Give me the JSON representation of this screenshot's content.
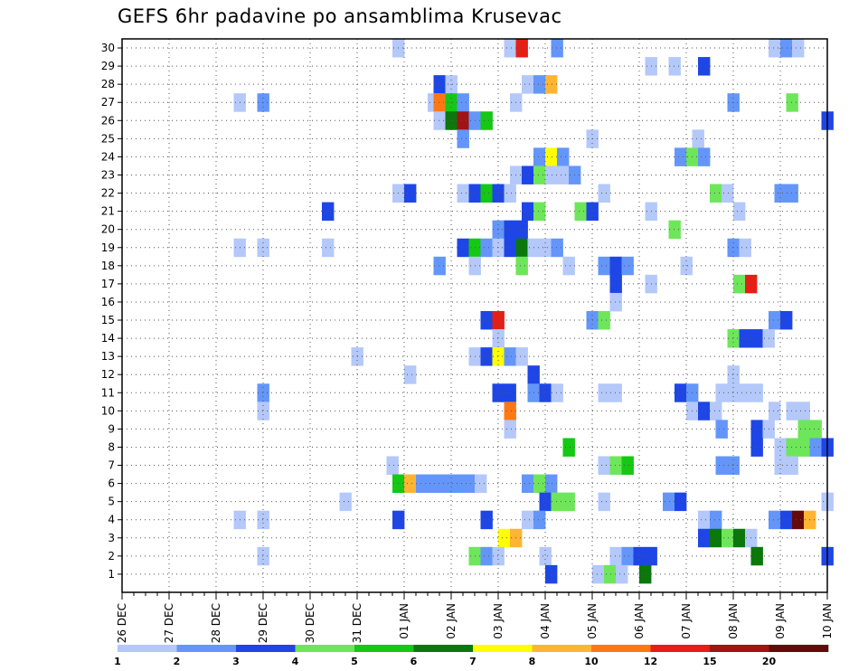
{
  "chart_data": {
    "type": "heatmap",
    "title": "GEFS 6hr padavine po ansamblima Krusevac",
    "x_tick_labels": [
      "26 DEC",
      "27 DEC",
      "28 DEC",
      "29 DEC",
      "30 DEC",
      "31 DEC",
      "01 JAN",
      "02 JAN",
      "03 JAN",
      "04 JAN",
      "05 JAN",
      "06 JAN",
      "07 JAN",
      "08 JAN",
      "09 JAN",
      "10 JAN"
    ],
    "y_tick_labels": [
      "1",
      "2",
      "3",
      "4",
      "5",
      "6",
      "7",
      "8",
      "9",
      "10",
      "11",
      "12",
      "13",
      "14",
      "15",
      "16",
      "17",
      "18",
      "19",
      "20",
      "21",
      "22",
      "23",
      "24",
      "25",
      "26",
      "27",
      "28",
      "29",
      "30"
    ],
    "x_range_steps": [
      0,
      60
    ],
    "y_range_members": [
      0,
      30
    ],
    "grid": true,
    "legend_position": "bottom",
    "levels": [
      "1",
      "2",
      "3",
      "4",
      "5",
      "6",
      "7",
      "8",
      "10",
      "12",
      "15",
      "20"
    ],
    "level_colors": [
      "#b4c8fa",
      "#6496fa",
      "#1e46e6",
      "#6ee65a",
      "#14c814",
      "#0a780a",
      "#ffff00",
      "#ffb432",
      "#ff7814",
      "#e61e14",
      "#a01414",
      "#640a0a"
    ],
    "cells": [
      [
        30,
        23.5,
        0
      ],
      [
        30,
        33,
        0
      ],
      [
        30,
        34,
        9
      ],
      [
        30,
        37,
        1
      ],
      [
        30,
        55.5,
        0
      ],
      [
        30,
        56.5,
        1
      ],
      [
        30,
        57.5,
        0
      ],
      [
        29,
        45,
        0
      ],
      [
        29,
        47,
        0
      ],
      [
        29,
        49.5,
        2
      ],
      [
        28,
        27,
        2
      ],
      [
        28,
        28,
        0
      ],
      [
        28,
        34.5,
        0
      ],
      [
        28,
        35.5,
        1
      ],
      [
        28,
        36.5,
        7
      ],
      [
        27,
        10,
        0
      ],
      [
        27,
        12,
        1
      ],
      [
        27,
        26.5,
        0
      ],
      [
        27,
        27,
        8
      ],
      [
        27,
        28,
        4
      ],
      [
        27,
        29,
        1
      ],
      [
        27,
        33.5,
        0
      ],
      [
        27,
        52,
        1
      ],
      [
        27,
        57,
        3
      ],
      [
        26,
        27,
        0
      ],
      [
        26,
        28,
        5
      ],
      [
        26,
        29,
        10
      ],
      [
        26,
        30,
        1
      ],
      [
        26,
        31,
        4
      ],
      [
        26,
        60,
        2
      ],
      [
        25,
        29,
        1
      ],
      [
        25,
        40,
        0
      ],
      [
        25,
        49,
        0
      ],
      [
        24,
        35.5,
        1
      ],
      [
        24,
        36.5,
        6
      ],
      [
        24,
        37.5,
        1
      ],
      [
        24,
        47.5,
        1
      ],
      [
        24,
        48.5,
        3
      ],
      [
        24,
        49.5,
        1
      ],
      [
        23,
        33.5,
        0
      ],
      [
        23,
        34.5,
        2
      ],
      [
        23,
        35.5,
        3
      ],
      [
        23,
        36.5,
        0
      ],
      [
        23,
        37.5,
        0
      ],
      [
        23,
        38.5,
        1
      ],
      [
        22,
        23.5,
        0
      ],
      [
        22,
        24.5,
        2
      ],
      [
        22,
        29,
        0
      ],
      [
        22,
        30,
        2
      ],
      [
        22,
        31,
        4
      ],
      [
        22,
        32,
        2
      ],
      [
        22,
        33,
        0
      ],
      [
        22,
        41,
        0
      ],
      [
        22,
        50.5,
        3
      ],
      [
        22,
        51.5,
        0
      ],
      [
        22,
        56,
        1
      ],
      [
        22,
        57,
        1
      ],
      [
        21,
        17.5,
        2
      ],
      [
        21,
        34.5,
        2
      ],
      [
        21,
        35.5,
        3
      ],
      [
        21,
        39,
        3
      ],
      [
        21,
        40,
        2
      ],
      [
        21,
        45,
        0
      ],
      [
        21,
        52.5,
        0
      ],
      [
        20,
        32,
        1
      ],
      [
        20,
        33,
        2
      ],
      [
        20,
        34,
        2
      ],
      [
        20,
        47,
        3
      ],
      [
        19,
        10,
        0
      ],
      [
        19,
        12,
        0
      ],
      [
        19,
        17.5,
        0
      ],
      [
        19,
        29,
        2
      ],
      [
        19,
        30,
        4
      ],
      [
        19,
        31,
        1
      ],
      [
        19,
        32,
        0
      ],
      [
        19,
        33,
        2
      ],
      [
        19,
        34,
        5
      ],
      [
        19,
        35,
        0
      ],
      [
        19,
        36,
        0
      ],
      [
        19,
        37,
        1
      ],
      [
        19,
        52,
        1
      ],
      [
        19,
        53,
        0
      ],
      [
        18,
        27,
        1
      ],
      [
        18,
        30,
        0
      ],
      [
        18,
        34,
        3
      ],
      [
        18,
        38,
        0
      ],
      [
        18,
        41,
        1
      ],
      [
        18,
        42,
        2
      ],
      [
        18,
        43,
        1
      ],
      [
        18,
        48,
        0
      ],
      [
        17,
        42,
        2
      ],
      [
        17,
        45,
        0
      ],
      [
        17,
        52.5,
        3
      ],
      [
        17,
        53.5,
        9
      ],
      [
        16,
        42,
        0
      ],
      [
        15,
        31,
        2
      ],
      [
        15,
        32,
        9
      ],
      [
        15,
        40,
        1
      ],
      [
        15,
        41,
        3
      ],
      [
        15,
        55.5,
        1
      ],
      [
        15,
        56.5,
        2
      ],
      [
        14,
        32,
        0
      ],
      [
        14,
        52,
        3
      ],
      [
        14,
        53,
        2
      ],
      [
        14,
        54,
        2
      ],
      [
        14,
        55,
        0
      ],
      [
        13,
        20,
        0
      ],
      [
        13,
        30,
        0
      ],
      [
        13,
        31,
        2
      ],
      [
        13,
        32,
        6
      ],
      [
        13,
        33,
        1
      ],
      [
        13,
        34,
        0
      ],
      [
        12,
        24.5,
        0
      ],
      [
        12,
        35,
        2
      ],
      [
        12,
        52,
        0
      ],
      [
        11,
        12,
        1
      ],
      [
        11,
        32,
        2
      ],
      [
        11,
        33,
        2
      ],
      [
        11,
        35,
        1
      ],
      [
        11,
        36,
        2
      ],
      [
        11,
        37,
        0
      ],
      [
        11,
        41,
        0
      ],
      [
        11,
        42,
        0
      ],
      [
        11,
        47.5,
        2
      ],
      [
        11,
        48.5,
        1
      ],
      [
        11,
        51,
        0
      ],
      [
        11,
        52,
        0
      ],
      [
        11,
        53,
        0
      ],
      [
        11,
        54,
        0
      ],
      [
        10,
        12,
        0
      ],
      [
        10,
        33,
        8
      ],
      [
        10,
        48.5,
        0
      ],
      [
        10,
        49.5,
        2
      ],
      [
        10,
        50.5,
        0
      ],
      [
        10,
        55.5,
        0
      ],
      [
        10,
        57,
        0
      ],
      [
        10,
        58,
        0
      ],
      [
        9,
        33,
        0
      ],
      [
        9,
        51,
        1
      ],
      [
        9,
        54,
        2
      ],
      [
        9,
        55,
        0
      ],
      [
        9,
        58,
        3
      ],
      [
        9,
        59,
        3
      ],
      [
        8,
        38,
        4
      ],
      [
        8,
        54,
        2
      ],
      [
        8,
        56,
        0
      ],
      [
        8,
        57,
        3
      ],
      [
        8,
        58,
        3
      ],
      [
        8,
        59,
        1
      ],
      [
        8,
        60,
        2
      ],
      [
        7,
        23,
        0
      ],
      [
        7,
        41,
        0
      ],
      [
        7,
        42,
        3
      ],
      [
        7,
        43,
        4
      ],
      [
        7,
        51,
        1
      ],
      [
        7,
        52,
        1
      ],
      [
        7,
        56,
        0
      ],
      [
        7,
        57,
        0
      ],
      [
        6,
        23.5,
        4
      ],
      [
        6,
        24.5,
        7
      ],
      [
        6,
        25.5,
        1
      ],
      [
        6,
        26.5,
        1
      ],
      [
        6,
        27.5,
        1
      ],
      [
        6,
        28.5,
        1
      ],
      [
        6,
        29.5,
        1
      ],
      [
        6,
        30.5,
        0
      ],
      [
        6,
        34.5,
        1
      ],
      [
        6,
        35.5,
        3
      ],
      [
        6,
        36.5,
        1
      ],
      [
        5,
        19,
        0
      ],
      [
        5,
        36,
        2
      ],
      [
        5,
        37,
        3
      ],
      [
        5,
        38,
        3
      ],
      [
        5,
        41,
        0
      ],
      [
        5,
        46.5,
        1
      ],
      [
        5,
        47.5,
        2
      ],
      [
        5,
        60,
        0
      ],
      [
        4,
        10,
        0
      ],
      [
        4,
        12,
        0
      ],
      [
        4,
        23.5,
        2
      ],
      [
        4,
        31,
        2
      ],
      [
        4,
        34.5,
        0
      ],
      [
        4,
        35.5,
        1
      ],
      [
        4,
        49.5,
        0
      ],
      [
        4,
        50.5,
        1
      ],
      [
        4,
        55.5,
        1
      ],
      [
        4,
        56.5,
        2
      ],
      [
        4,
        57.5,
        11
      ],
      [
        4,
        58.5,
        7
      ],
      [
        3,
        32.5,
        6
      ],
      [
        3,
        33.5,
        7
      ],
      [
        3,
        49.5,
        2
      ],
      [
        3,
        50.5,
        5
      ],
      [
        3,
        51.5,
        3
      ],
      [
        3,
        52.5,
        5
      ],
      [
        3,
        53.5,
        0
      ],
      [
        2,
        12,
        0
      ],
      [
        2,
        30,
        3
      ],
      [
        2,
        31,
        1
      ],
      [
        2,
        32,
        0
      ],
      [
        2,
        36,
        0
      ],
      [
        2,
        42,
        0
      ],
      [
        2,
        43,
        1
      ],
      [
        2,
        44,
        2
      ],
      [
        2,
        45,
        2
      ],
      [
        2,
        54,
        5
      ],
      [
        2,
        60,
        2
      ],
      [
        1,
        36.5,
        2
      ],
      [
        1,
        40.5,
        0
      ],
      [
        1,
        41.5,
        3
      ],
      [
        1,
        42.5,
        0
      ],
      [
        1,
        44.5,
        5
      ]
    ]
  }
}
